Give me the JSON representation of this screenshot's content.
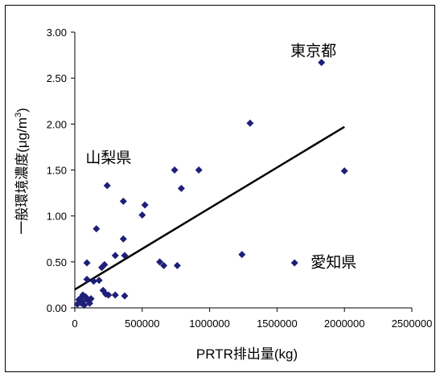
{
  "chart_data": {
    "type": "scatter",
    "title": "",
    "xlabel": "PRTR排出量(kg)",
    "ylabel": "一般環境濃度(μg/m³)",
    "ylabel_main": "一般環境濃度(μg/m",
    "ylabel_sup": "3",
    "ylabel_close": ")",
    "xlim": [
      0,
      2500000
    ],
    "ylim": [
      0,
      3.0
    ],
    "x_ticks": [
      0,
      500000,
      1000000,
      1500000,
      2000000,
      2500000
    ],
    "x_tick_labels": [
      "0",
      "500000",
      "1000000",
      "1500000",
      "2000000",
      "2500000"
    ],
    "y_ticks": [
      0,
      0.5,
      1.0,
      1.5,
      2.0,
      2.5,
      3.0
    ],
    "y_tick_labels": [
      "0.00",
      "0.50",
      "1.00",
      "1.50",
      "2.00",
      "2.50",
      "3.00"
    ],
    "grid": false,
    "legend": "none",
    "marker_color": "#1f1f7a",
    "trendline": {
      "x": [
        0,
        2000000
      ],
      "y": [
        0.2,
        1.97
      ]
    },
    "annotations": [
      {
        "text": "東京都",
        "x": 1600000,
        "y": 2.74
      },
      {
        "text": "山梨県",
        "x": 80000,
        "y": 1.58
      },
      {
        "text": "愛知県",
        "x": 1750000,
        "y": 0.44
      }
    ],
    "points": [
      [
        1830000,
        2.67
      ],
      [
        1300000,
        2.01
      ],
      [
        2000000,
        1.49
      ],
      [
        920000,
        1.5
      ],
      [
        740000,
        1.5
      ],
      [
        790000,
        1.3
      ],
      [
        240000,
        1.33
      ],
      [
        360000,
        1.16
      ],
      [
        520000,
        1.12
      ],
      [
        500000,
        1.01
      ],
      [
        160000,
        0.86
      ],
      [
        360000,
        0.75
      ],
      [
        1240000,
        0.58
      ],
      [
        1630000,
        0.49
      ],
      [
        300000,
        0.57
      ],
      [
        370000,
        0.57
      ],
      [
        630000,
        0.5
      ],
      [
        660000,
        0.46
      ],
      [
        760000,
        0.46
      ],
      [
        90000,
        0.49
      ],
      [
        200000,
        0.44
      ],
      [
        220000,
        0.47
      ],
      [
        180000,
        0.3
      ],
      [
        140000,
        0.29
      ],
      [
        90000,
        0.31
      ],
      [
        210000,
        0.19
      ],
      [
        230000,
        0.15
      ],
      [
        250000,
        0.14
      ],
      [
        300000,
        0.14
      ],
      [
        370000,
        0.13
      ],
      [
        120000,
        0.1
      ],
      [
        100000,
        0.08
      ],
      [
        80000,
        0.12
      ],
      [
        60000,
        0.14
      ],
      [
        40000,
        0.1
      ],
      [
        30000,
        0.09
      ],
      [
        50000,
        0.05
      ],
      [
        70000,
        0.03
      ],
      [
        20000,
        0.04
      ],
      [
        60000,
        0.07
      ],
      [
        110000,
        0.05
      ]
    ]
  }
}
